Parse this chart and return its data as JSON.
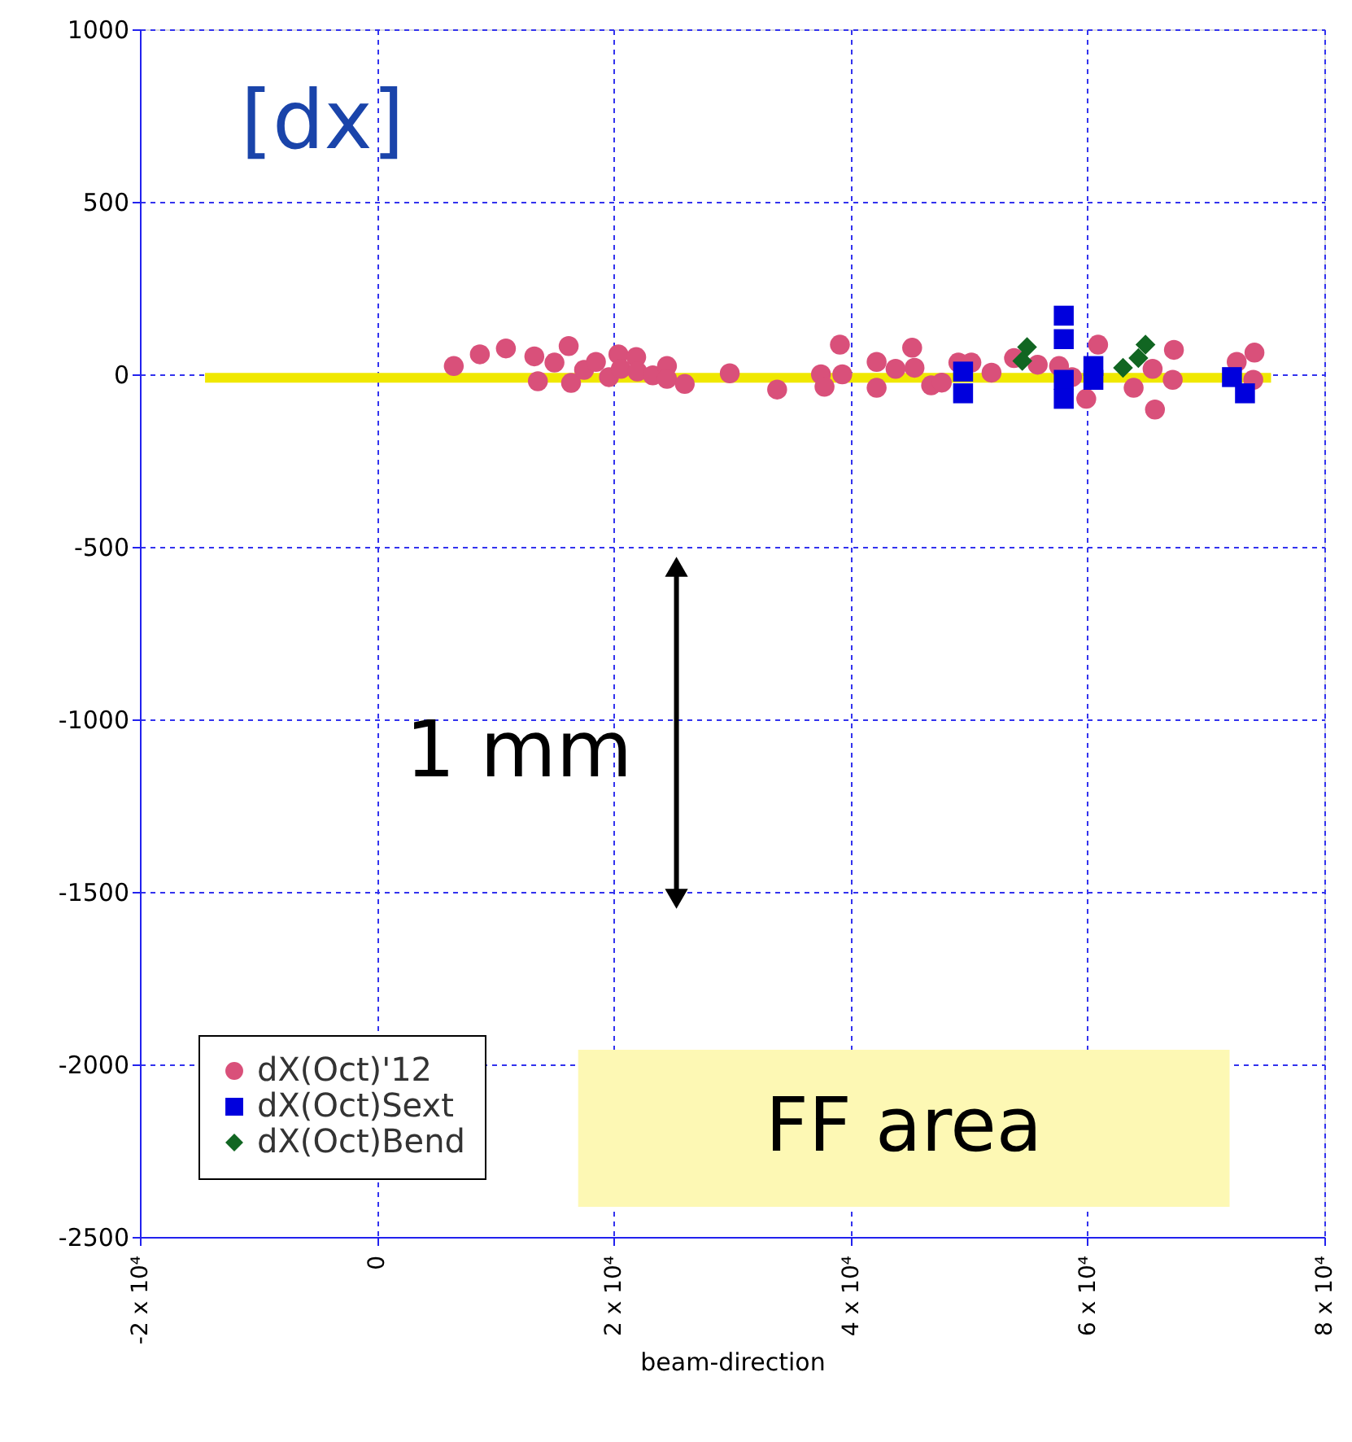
{
  "chart_data": {
    "type": "scatter",
    "title": "[dx]",
    "xlabel": "beam-direction",
    "xlim": [
      -20000,
      80000
    ],
    "xticks": [
      {
        "value": -20000,
        "label": "-2 x 10⁴"
      },
      0,
      {
        "value": 20000,
        "label": "2 x 10⁴"
      },
      {
        "value": 40000,
        "label": "4 x 10⁴"
      },
      {
        "value": 60000,
        "label": "6 x 10⁴"
      },
      {
        "value": 80000,
        "label": "8 x 10⁴"
      }
    ],
    "ylim": [
      -2500,
      1000
    ],
    "yticks": [
      -2500,
      -2000,
      -1500,
      -1000,
      -500,
      0,
      500,
      1000
    ],
    "grid": true,
    "legend": "bottom left",
    "series": [
      {
        "type": "line",
        "color": "#f0e800",
        "line_style": "solid",
        "x": [
          -14500,
          75500
        ],
        "values": [
          -10,
          -10
        ]
      },
      {
        "name": "dX(Oct)'12",
        "color": "#d9507a",
        "marker": "circle",
        "x": [
          6500,
          8700,
          10900,
          13300,
          13600,
          15000,
          16200,
          16400,
          17500,
          18500,
          19600,
          20400,
          20600,
          21900,
          22000,
          23300,
          24500,
          24500,
          26000,
          29800,
          33800,
          37500,
          37800,
          39100,
          39300,
          42200,
          42200,
          43800,
          45200,
          45400,
          46800,
          47700,
          49100,
          50200,
          51900,
          53800,
          55800,
          57600,
          58700,
          59900,
          60900,
          63900,
          65500,
          65700,
          67200,
          67300,
          72600,
          74100,
          74000
        ],
        "values": [
          24,
          58,
          75,
          52,
          -20,
          34,
          82,
          -25,
          13,
          36,
          -8,
          58,
          16,
          50,
          8,
          -3,
          24,
          -13,
          -28,
          3,
          -44,
          0,
          -36,
          86,
          0,
          36,
          -39,
          16,
          77,
          19,
          -32,
          -24,
          34,
          34,
          5,
          47,
          28,
          24,
          -8,
          -71,
          86,
          -39,
          16,
          -102,
          -16,
          71,
          36,
          63,
          -16
        ]
      },
      {
        "name": "dX(Oct)Sext",
        "color": "#0000dd",
        "marker": "square",
        "x": [
          49500,
          49500,
          58000,
          58000,
          58000,
          58000,
          60500,
          60500,
          72200,
          73300
        ],
        "values": [
          8,
          -55,
          170,
          102,
          -16,
          -71,
          24,
          -16,
          -8,
          -55
        ]
      },
      {
        "name": "dX(Oct)Bend",
        "color": "#116622",
        "marker": "diamond",
        "x": [
          54900,
          54500,
          63000,
          64300,
          64900
        ],
        "values": [
          79,
          39,
          19,
          47,
          86
        ]
      }
    ],
    "bands": [
      {
        "axis": "x",
        "from": 17000,
        "to": 72000,
        "label": "FF area",
        "color": "#fdf8b4"
      }
    ],
    "annotations": [
      "1 mm"
    ]
  }
}
